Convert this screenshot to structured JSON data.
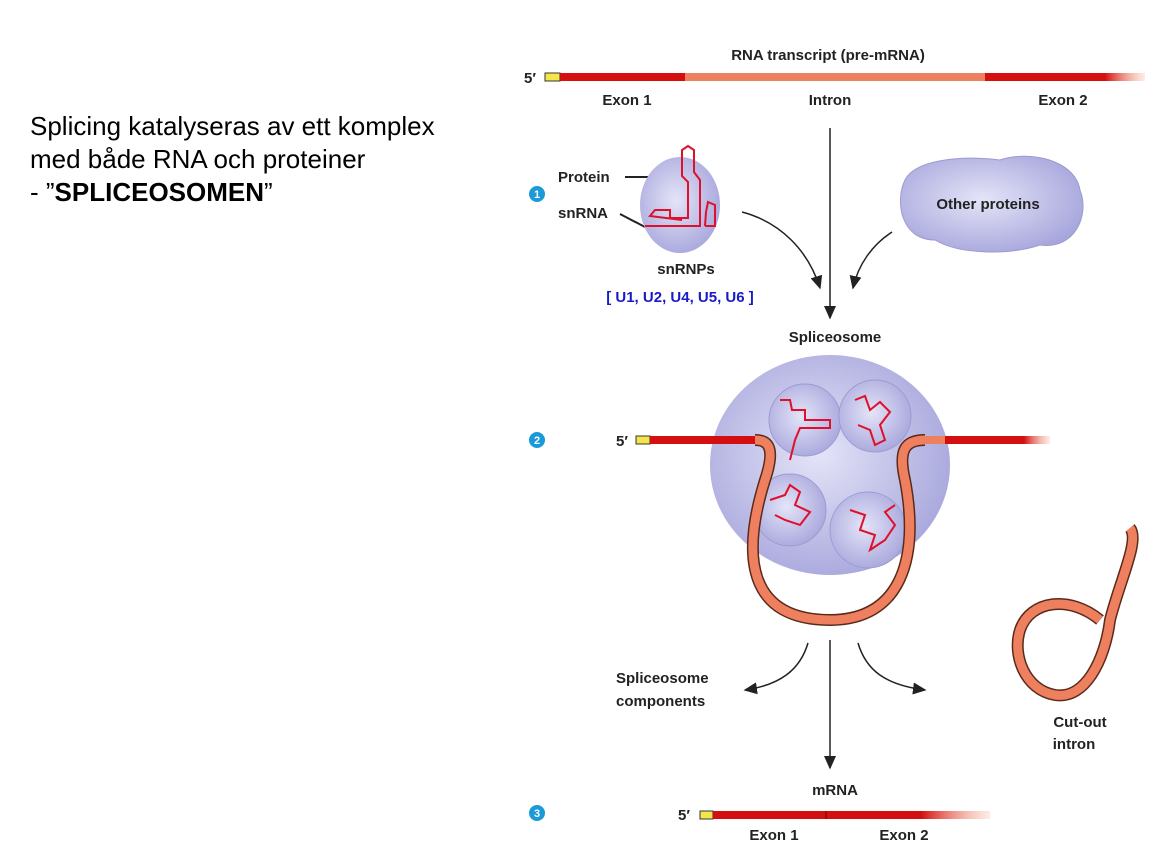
{
  "slide": {
    "line1": "Splicing katalyseras av ett komplex",
    "line2": "med både RNA och proteiner",
    "line3_prefix": " - ”",
    "line3_bold": "SPLICEOSOMEN",
    "line3_suffix": "”"
  },
  "diagram": {
    "title": "RNA transcript (pre-mRNA)",
    "five_prime": "5′",
    "exon1": "Exon 1",
    "intron": "Intron",
    "exon2": "Exon 2",
    "step1": "1",
    "step2": "2",
    "step3": "3",
    "protein": "Protein",
    "snrna": "snRNA",
    "snrnps": "snRNPs",
    "snrnp_list": "[ U1, U2, U4, U5, U6 ]",
    "other_proteins": "Other proteins",
    "spliceosome": "Spliceosome",
    "components_line1": "Spliceosome",
    "components_line2": "components",
    "cutout_line1": "Cut-out",
    "cutout_line2": "intron",
    "mrna": "mRNA",
    "colors": {
      "exon": "#d40f0f",
      "intron": "#ee8060",
      "cap": "#f4e64a",
      "complex": "#b7b6e6",
      "step": "#1a9ad8",
      "snrnp_list": "#1a1ac8"
    }
  }
}
